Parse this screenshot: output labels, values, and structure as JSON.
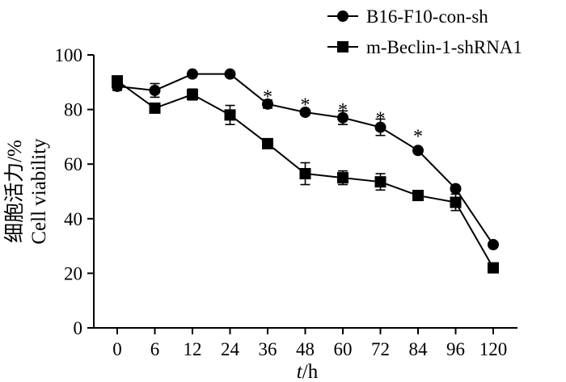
{
  "chart_data": {
    "type": "line",
    "xlabel_italic": "t",
    "xlabel_rest": "/h",
    "ylabel_line1": "细胞活力/%",
    "ylabel_line2": "Cell viability",
    "x": [
      "0",
      "6",
      "12",
      "24",
      "36",
      "48",
      "60",
      "72",
      "84",
      "96",
      "120"
    ],
    "ylim": [
      0,
      100
    ],
    "yticks": [
      "0",
      "20",
      "40",
      "60",
      "80",
      "100"
    ],
    "legend_position": "top-right",
    "series": [
      {
        "name": "B16-F10-con-sh",
        "marker": "circle",
        "values": [
          88.5,
          87,
          93,
          93,
          82,
          79,
          77,
          73.5,
          65,
          51,
          30.5
        ],
        "errors": [
          1.5,
          2.5,
          1,
          1,
          1.5,
          1,
          2.5,
          3,
          1,
          1,
          1
        ]
      },
      {
        "name": "m-Beclin-1-shRNA1",
        "marker": "square",
        "values": [
          90.5,
          80.5,
          85.5,
          78,
          67.5,
          56.5,
          55,
          53.5,
          48.5,
          46,
          22
        ],
        "errors": [
          1,
          1,
          2,
          3.5,
          1.5,
          4,
          2.5,
          3,
          1.5,
          3,
          1
        ]
      }
    ],
    "annotations": [
      {
        "text": "*",
        "x": "36",
        "y": 86
      },
      {
        "text": "*",
        "x": "48",
        "y": 83
      },
      {
        "text": "*",
        "x": "60",
        "y": 81
      },
      {
        "text": "*",
        "x": "72",
        "y": 78
      },
      {
        "text": "*",
        "x": "84",
        "y": 71.5
      }
    ]
  }
}
